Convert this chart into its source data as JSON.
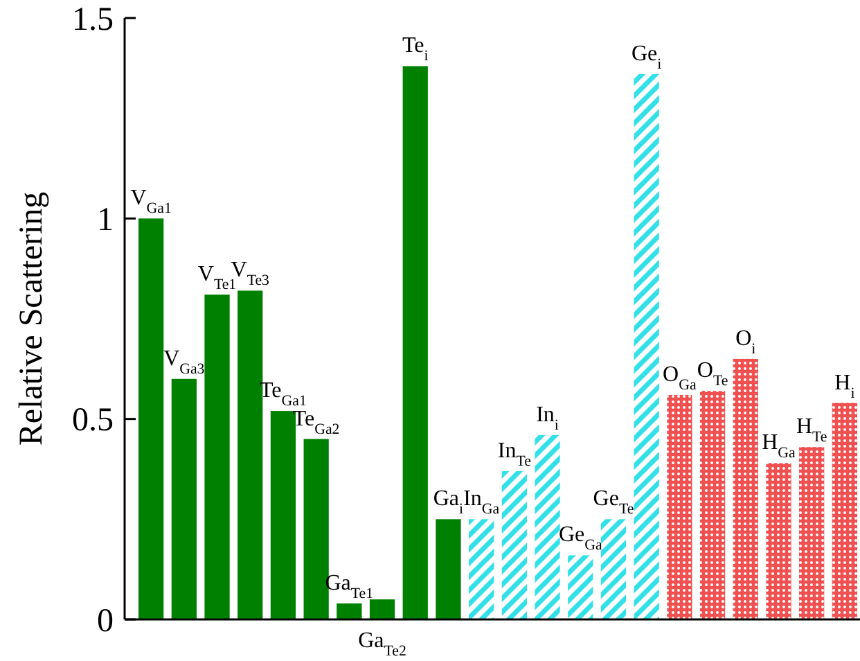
{
  "chart_data": {
    "type": "bar",
    "ylabel": "Relative Scattering",
    "categories": [
      "V$_{Ga1}$",
      "V$_{Ga3}$",
      "V$_{Te1}$",
      "V$_{Te3}$",
      "Te$_{Ga1}$",
      "Te$_{Ga2}$",
      "Ga$_{Te1}$",
      "Ga$_{Te2}$",
      "Te$_{i}$",
      "Ga$_{i}$",
      "In$_{Ga}$",
      "In$_{Te}$",
      "In$_{i}$",
      "Ge$_{Ga}$",
      "Ge$_{Te}$",
      "Ge$_{i}$",
      "O$_{Ga}$",
      "O$_{Te}$",
      "O$_{i}$",
      "H$_{Ga}$",
      "H$_{Te}$",
      "H$_{i}$"
    ],
    "series": [
      {
        "color": "#008000",
        "values": [
          1.0,
          0.6,
          0.81,
          0.82,
          0.52,
          0.45,
          0.04,
          0.05,
          1.38,
          0.25,
          null,
          null,
          null,
          null,
          null,
          null,
          null,
          null,
          null,
          null,
          null,
          null
        ]
      },
      {
        "color": "#33e0e8",
        "values": [
          null,
          null,
          null,
          null,
          null,
          null,
          null,
          null,
          null,
          null,
          0.25,
          0.37,
          0.46,
          0.16,
          0.25,
          1.36,
          null,
          null,
          null,
          null,
          null,
          null
        ]
      },
      {
        "color": "#f05050",
        "values": [
          null,
          null,
          null,
          null,
          null,
          null,
          null,
          null,
          null,
          null,
          null,
          null,
          null,
          null,
          null,
          null,
          0.56,
          0.57,
          0.65,
          0.39,
          0.43,
          0.54
        ]
      }
    ],
    "ylim": [
      0,
      1.5
    ],
    "yticks": [
      0,
      0.5,
      1,
      1.5
    ],
    "grid": false
  }
}
